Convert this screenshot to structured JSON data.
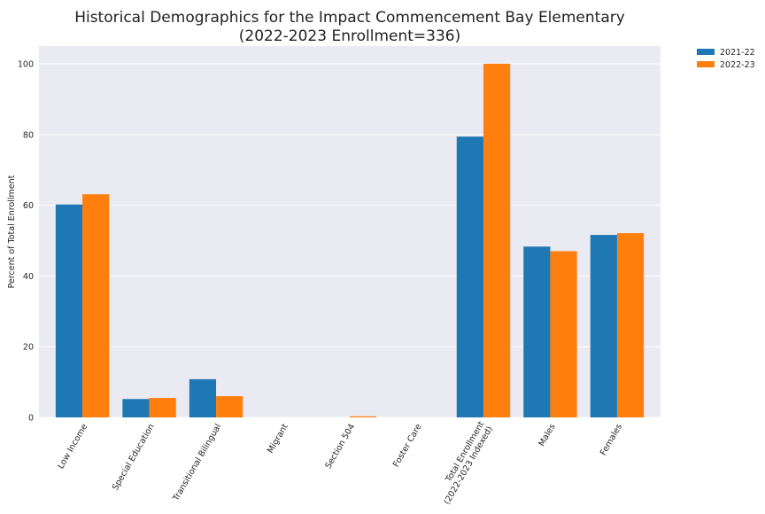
{
  "chart_data": {
    "type": "bar",
    "title": "Historical Demographics for the Impact Commencement Bay Elementary",
    "subtitle": "(2022-2023 Enrollment=336)",
    "xlabel": "",
    "ylabel": "Percent of Total Enrollment",
    "ylim": [
      0,
      105
    ],
    "yticks": [
      0,
      20,
      40,
      60,
      80,
      100
    ],
    "grid": true,
    "legend_position": "outside-top-right",
    "categories": [
      "Low Income",
      "Special Education",
      "Transitional Bilingual",
      "Migrant",
      "Section 504",
      "Foster Care",
      "Total Enrollment\n(2022-2023 Indexed)",
      "Males",
      "Females"
    ],
    "series": [
      {
        "name": "2021-22",
        "color": "#1f77b4",
        "values": [
          60.2,
          5.2,
          10.8,
          0,
          0,
          0,
          79.4,
          48.3,
          51.6
        ]
      },
      {
        "name": "2022-23",
        "color": "#ff7f0e",
        "values": [
          63.1,
          5.5,
          6.0,
          0,
          0.3,
          0,
          100,
          47.0,
          52.1
        ]
      }
    ],
    "colors": {
      "plot_background": "#eaeaf2",
      "grid": "#ffffff"
    }
  }
}
